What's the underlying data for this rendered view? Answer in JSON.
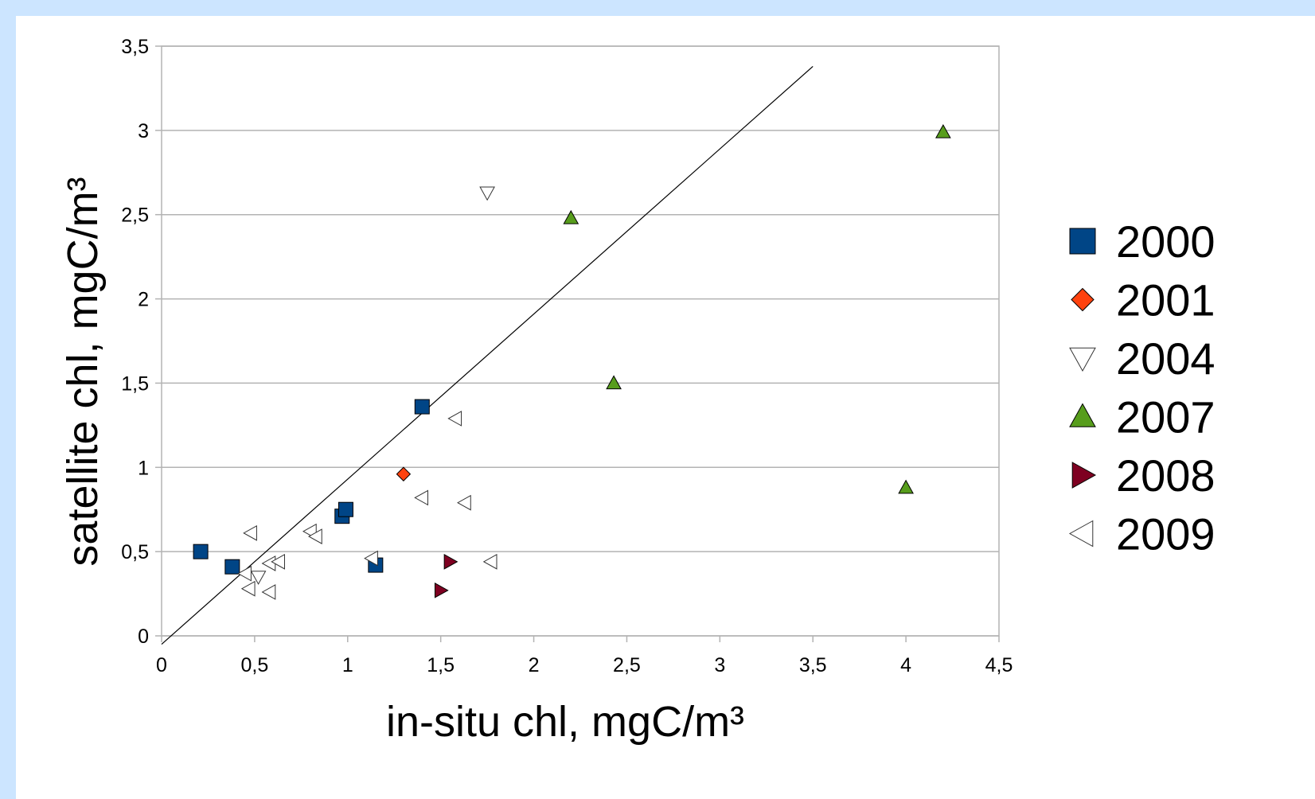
{
  "chart_data": {
    "type": "scatter",
    "title": "",
    "xlabel": "in-situ chl, mgC/m³",
    "ylabel": "satellite chl, mgC/m³",
    "xlim": [
      0,
      4.5
    ],
    "ylim": [
      0,
      3.5
    ],
    "x_ticks": [
      "0",
      "0,5",
      "1",
      "1,5",
      "2",
      "2,5",
      "3",
      "3,5",
      "4",
      "4,5"
    ],
    "y_ticks": [
      "0",
      "0,5",
      "1",
      "1,5",
      "2",
      "2,5",
      "3",
      "3,5"
    ],
    "grid": "horizontal",
    "legend_position": "right",
    "reference_line": {
      "x": [
        0,
        3.5
      ],
      "y": [
        -0.05,
        3.38
      ]
    },
    "series": [
      {
        "name": "2000",
        "marker": "square",
        "color": "#004586",
        "points": [
          [
            0.21,
            0.5
          ],
          [
            0.38,
            0.41
          ],
          [
            0.97,
            0.71
          ],
          [
            0.99,
            0.75
          ],
          [
            1.15,
            0.42
          ],
          [
            1.4,
            1.36
          ]
        ]
      },
      {
        "name": "2001",
        "marker": "diamond",
        "color": "#ff420e",
        "points": [
          [
            1.3,
            0.96
          ]
        ]
      },
      {
        "name": "2004",
        "marker": "triangle-down",
        "color": "#ffffff",
        "points": [
          [
            1.75,
            2.63
          ],
          [
            0.52,
            0.35
          ]
        ]
      },
      {
        "name": "2007",
        "marker": "triangle-up",
        "color": "#579d1c",
        "points": [
          [
            2.2,
            2.48
          ],
          [
            2.43,
            1.5
          ],
          [
            4.0,
            0.88
          ],
          [
            4.2,
            2.99
          ]
        ]
      },
      {
        "name": "2008",
        "marker": "triangle-right",
        "color": "#7e0021",
        "points": [
          [
            1.55,
            0.44
          ],
          [
            1.5,
            0.27
          ]
        ]
      },
      {
        "name": "2009",
        "marker": "triangle-left",
        "color": "#ffffff",
        "points": [
          [
            1.58,
            1.29
          ],
          [
            1.4,
            0.82
          ],
          [
            1.63,
            0.79
          ],
          [
            1.77,
            0.44
          ],
          [
            0.48,
            0.61
          ],
          [
            0.8,
            0.62
          ],
          [
            0.83,
            0.59
          ],
          [
            1.13,
            0.46
          ],
          [
            0.45,
            0.37
          ],
          [
            0.58,
            0.43
          ],
          [
            0.63,
            0.44
          ],
          [
            0.47,
            0.28
          ],
          [
            0.58,
            0.26
          ]
        ]
      }
    ]
  }
}
